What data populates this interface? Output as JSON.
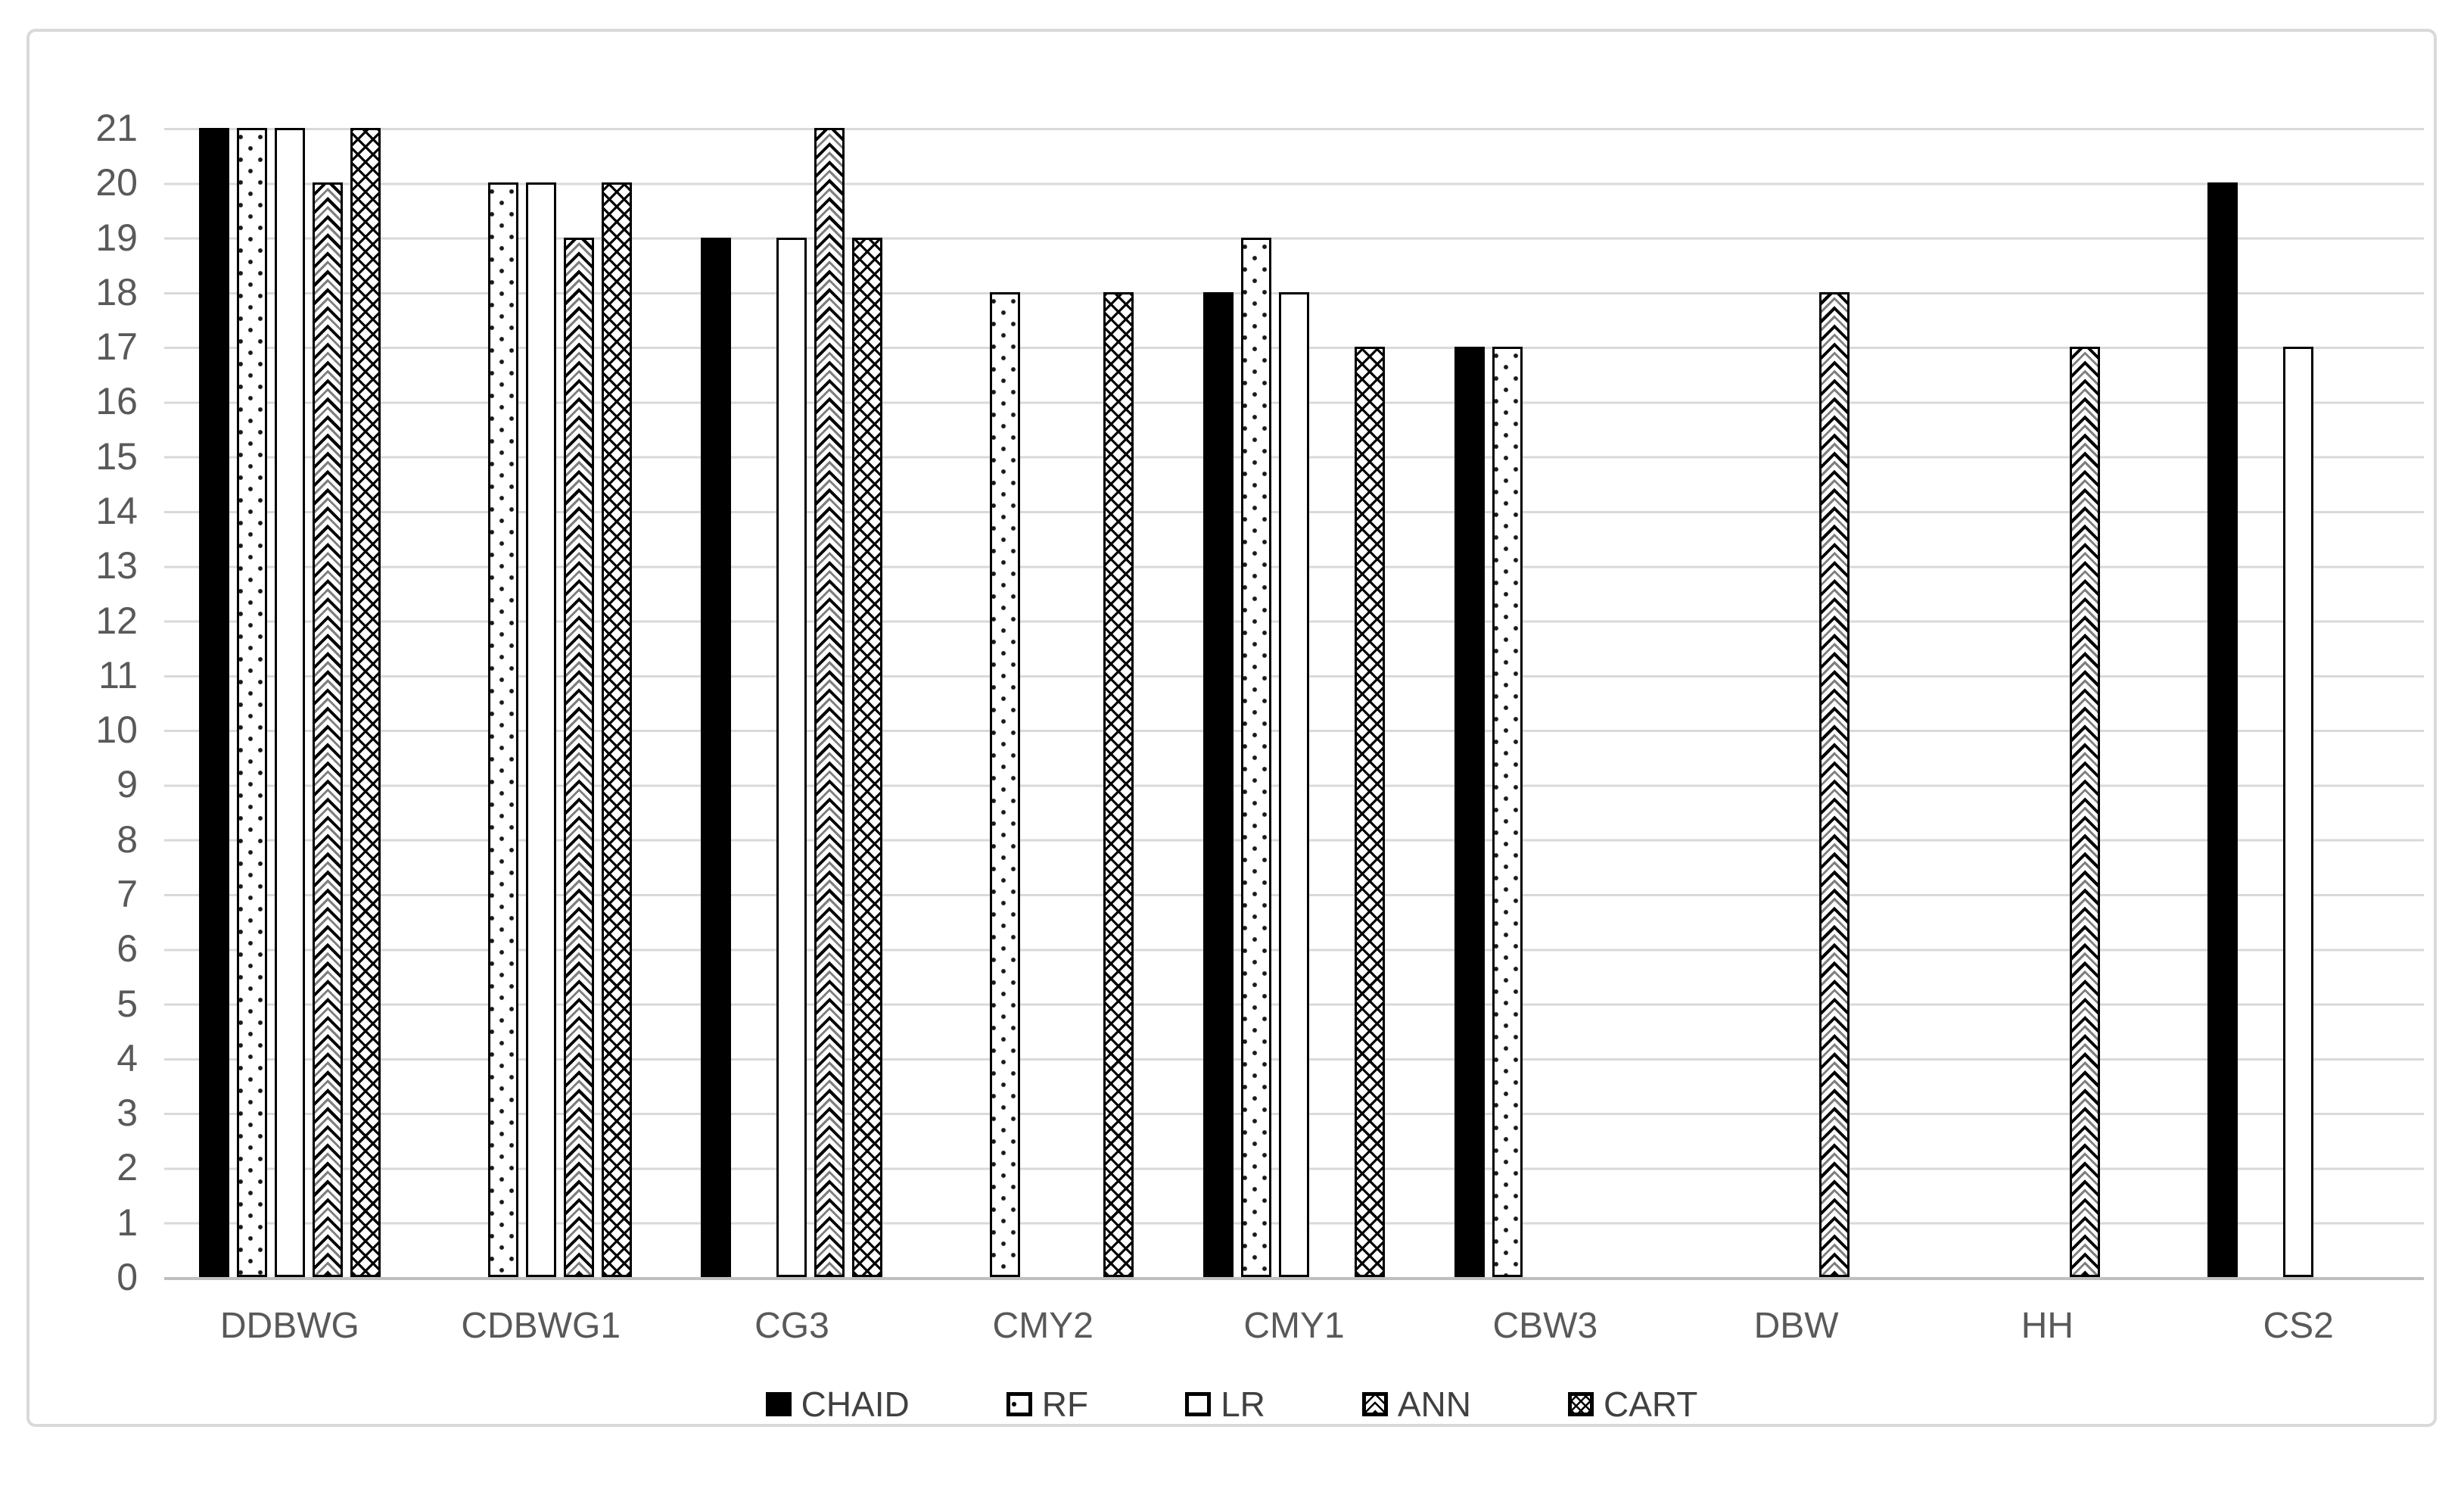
{
  "chart_data": {
    "type": "bar",
    "title": "",
    "xlabel": "",
    "ylabel": "",
    "categories": [
      "DDBWG",
      "CDBWG1",
      "CG3",
      "CMY2",
      "CMY1",
      "CBW3",
      "DBW",
      "HH",
      "CS2"
    ],
    "series": [
      {
        "name": "CHAID",
        "pattern": "solid-black",
        "values": [
          21,
          0,
          19,
          0,
          18,
          17,
          0,
          0,
          20
        ]
      },
      {
        "name": "RF",
        "pattern": "dotted",
        "values": [
          21,
          20,
          0,
          18,
          19,
          17,
          0,
          0,
          0
        ]
      },
      {
        "name": "LR",
        "pattern": "white-outline",
        "values": [
          21,
          20,
          19,
          0,
          18,
          0,
          0,
          0,
          17
        ]
      },
      {
        "name": "ANN",
        "pattern": "chevron",
        "values": [
          20,
          19,
          21,
          0,
          0,
          0,
          18,
          17,
          0
        ]
      },
      {
        "name": "CART",
        "pattern": "crosshatch",
        "values": [
          21,
          20,
          19,
          18,
          17,
          0,
          0,
          0,
          0
        ]
      }
    ],
    "ylim": [
      0,
      21
    ],
    "yticks": [
      0,
      1,
      2,
      3,
      4,
      5,
      6,
      7,
      8,
      9,
      10,
      11,
      12,
      13,
      14,
      15,
      16,
      17,
      18,
      19,
      20,
      21
    ],
    "grid": "horizontal",
    "legend_position": "bottom",
    "legend_labels": [
      "CHAID",
      "RF",
      "LR",
      "ANN",
      "CART"
    ]
  },
  "colors": {
    "background": "#ffffff",
    "frame_border": "#d9d9d9",
    "gridline": "#d9d9d9",
    "axis_line": "#bfbfbf",
    "axis_label_text": "#595959",
    "legend_text": "#404040",
    "bar_fill_black": "#000000",
    "bar_outline": "#000000"
  }
}
